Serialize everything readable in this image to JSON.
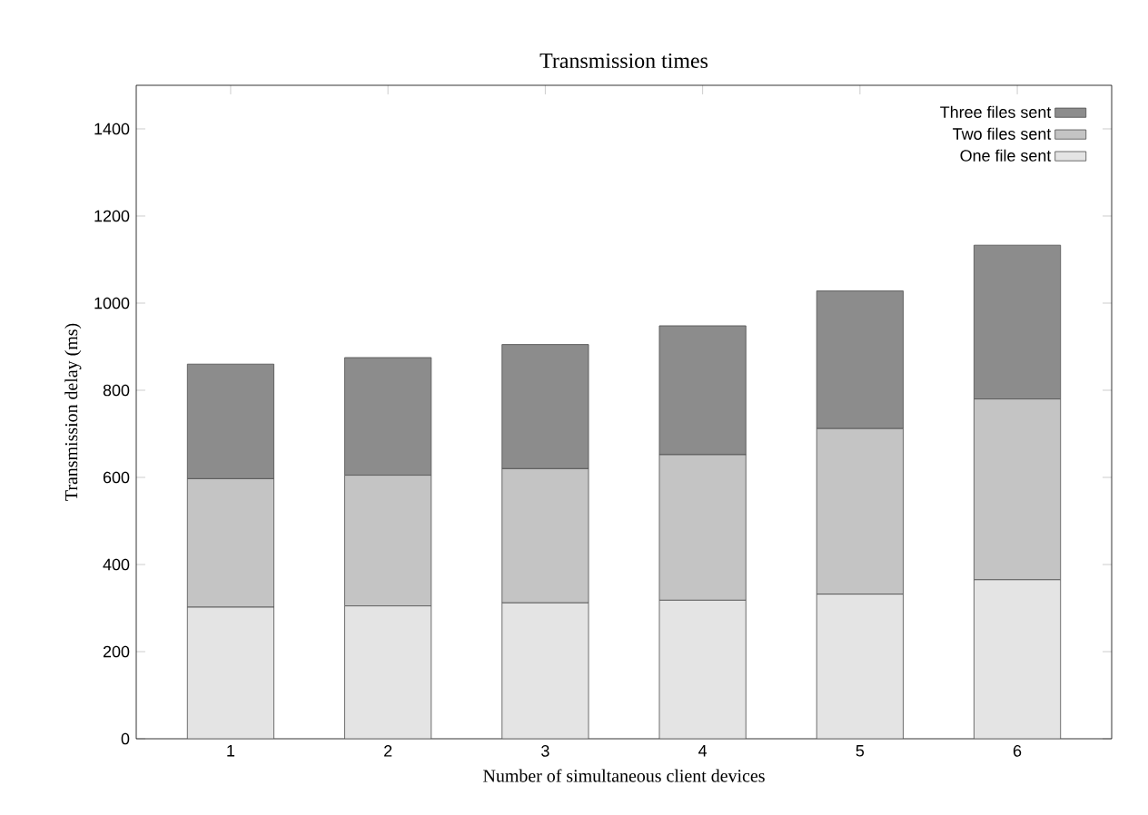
{
  "chart_data": {
    "type": "bar",
    "stacked": true,
    "title": "Transmission times",
    "xlabel": "Number of simultaneous client devices",
    "ylabel": "Transmission delay (ms)",
    "categories": [
      "1",
      "2",
      "3",
      "4",
      "5",
      "6"
    ],
    "series": [
      {
        "name": "One file sent",
        "color": "#e4e4e4",
        "values": [
          302,
          305,
          312,
          318,
          332,
          365
        ]
      },
      {
        "name": "Two files sent",
        "color": "#c4c4c4",
        "values": [
          295,
          300,
          308,
          334,
          380,
          415
        ]
      },
      {
        "name": "Three files sent",
        "color": "#8c8c8c",
        "values": [
          263,
          270,
          285,
          296,
          316,
          353
        ]
      }
    ],
    "ylim": [
      0,
      1500
    ],
    "yticks": [
      0,
      200,
      400,
      600,
      800,
      1000,
      1200,
      1400
    ],
    "legend": "top right",
    "grid": false
  }
}
